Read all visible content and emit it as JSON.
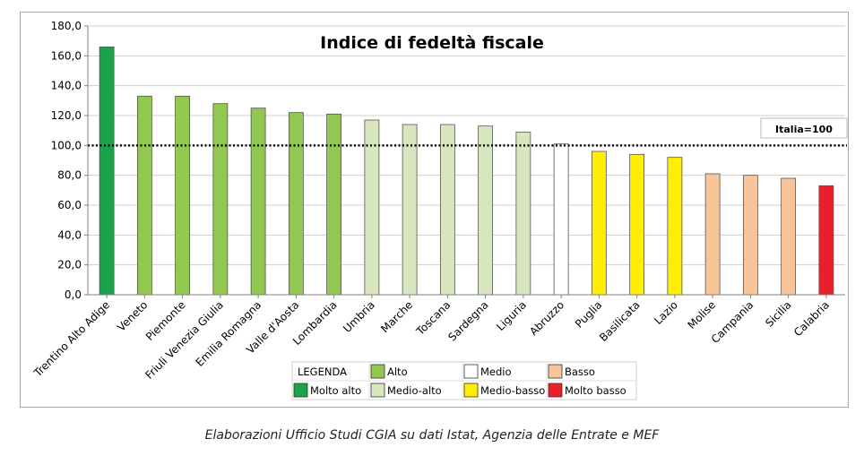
{
  "chart_data": {
    "type": "bar",
    "title": "Indice di fedeltà fiscale",
    "categories": [
      "Trentino Alto Adige",
      "Veneto",
      "Piemonte",
      "Friuli Venezia Giulia",
      "Emilia Romagna",
      "Valle d'Aosta",
      "Lombardia",
      "Umbria",
      "Marche",
      "Toscana",
      "Sardegna",
      "Liguria",
      "Abruzzo",
      "Puglia",
      "Basilicata",
      "Lazio",
      "Molise",
      "Campania",
      "Sicilia",
      "Calabria"
    ],
    "values": [
      166,
      133,
      133,
      128,
      125,
      122,
      121,
      117,
      114,
      114,
      113,
      109,
      101,
      96,
      94,
      92,
      81,
      80,
      78,
      73
    ],
    "classes": [
      "Molto alto",
      "Alto",
      "Alto",
      "Alto",
      "Alto",
      "Alto",
      "Alto",
      "Medio-alto",
      "Medio-alto",
      "Medio-alto",
      "Medio-alto",
      "Medio-alto",
      "Medio",
      "Medio-basso",
      "Medio-basso",
      "Medio-basso",
      "Basso",
      "Basso",
      "Basso",
      "Molto basso"
    ],
    "ylim": [
      0,
      180
    ],
    "yticks": [
      "0,0",
      "20,0",
      "40,0",
      "60,0",
      "80,0",
      "100,0",
      "120,0",
      "140,0",
      "160,0",
      "180,0"
    ],
    "reference": {
      "value": 100,
      "label": "Italia=100",
      "style": "dotted"
    },
    "grid": true,
    "legend": {
      "title": "LEGENDA",
      "placement": "bottom",
      "items": [
        {
          "label": "Alto",
          "color": "#92c84f"
        },
        {
          "label": "Medio",
          "color": "#ffffff"
        },
        {
          "label": "Basso",
          "color": "#f8c49a"
        },
        {
          "label": "Molto alto",
          "color": "#1aa34a"
        },
        {
          "label": "Medio-alto",
          "color": "#d8e6c0"
        },
        {
          "label": "Medio-basso",
          "color": "#ffee00"
        },
        {
          "label": "Molto basso",
          "color": "#e8202a"
        }
      ]
    },
    "colors": {
      "Molto alto": "#1aa34a",
      "Alto": "#92c84f",
      "Medio-alto": "#d8e6c0",
      "Medio": "#ffffff",
      "Medio-basso": "#ffee00",
      "Basso": "#f8c49a",
      "Molto basso": "#e8202a"
    }
  },
  "caption": "Elaborazioni Ufficio Studi CGIA su dati Istat, Agenzia delle Entrate e MEF"
}
